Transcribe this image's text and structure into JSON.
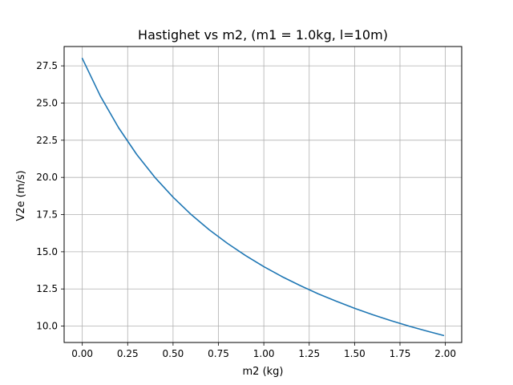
{
  "chart_data": {
    "type": "line",
    "title": "Hastighet vs m2, (m1 = 1.0kg, l=10m)",
    "xlabel": "m2 (kg)",
    "ylabel": "V2e (m/s)",
    "xlim": [
      -0.1,
      2.09
    ],
    "ylim": [
      8.9,
      28.8
    ],
    "xticks": [
      0.0,
      0.25,
      0.5,
      0.75,
      1.0,
      1.25,
      1.5,
      1.75,
      2.0
    ],
    "xtick_labels": [
      "0.00",
      "0.25",
      "0.50",
      "0.75",
      "1.00",
      "1.25",
      "1.50",
      "1.75",
      "2.00"
    ],
    "yticks": [
      10.0,
      12.5,
      15.0,
      17.5,
      20.0,
      22.5,
      25.0,
      27.5
    ],
    "ytick_labels": [
      "10.0",
      "12.5",
      "15.0",
      "17.5",
      "20.0",
      "22.5",
      "25.0",
      "27.5"
    ],
    "grid": true,
    "series": [
      {
        "color": "#1f77b4",
        "x": [
          0.0,
          0.1,
          0.2,
          0.3,
          0.4,
          0.5,
          0.6,
          0.7,
          0.8,
          0.9,
          1.0,
          1.1,
          1.2,
          1.3,
          1.4,
          1.5,
          1.6,
          1.7,
          1.8,
          1.9,
          1.99
        ],
        "y": [
          28.0,
          25.46,
          23.34,
          21.54,
          20.0,
          18.67,
          17.5,
          16.47,
          15.56,
          14.74,
          14.0,
          13.33,
          12.73,
          12.17,
          11.67,
          11.2,
          10.77,
          10.37,
          10.0,
          9.66,
          9.37
        ]
      }
    ]
  }
}
